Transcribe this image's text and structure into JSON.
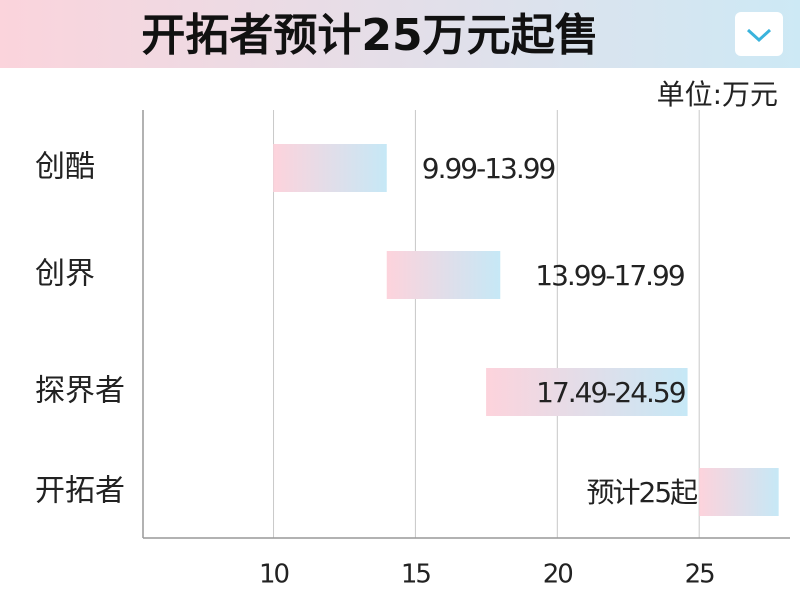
{
  "chart_data": {
    "type": "range-bar",
    "title": "开拓者预计25万元起售",
    "unit_label": "单位:万元",
    "categories": [
      "创酷",
      "创界",
      "探界者",
      "开拓者"
    ],
    "low": [
      9.99,
      13.99,
      17.49,
      25
    ],
    "high": [
      13.99,
      17.99,
      24.59,
      27.8
    ],
    "value_labels": [
      "9.99-13.99",
      "13.99-17.99",
      "17.49-24.59",
      "预计25起"
    ],
    "colors": [
      "#fdd3dc",
      "#c6e8f6"
    ],
    "xlim": [
      5.4,
      28.2
    ],
    "xticks": [
      10,
      15,
      20,
      25
    ],
    "grid": true
  }
}
